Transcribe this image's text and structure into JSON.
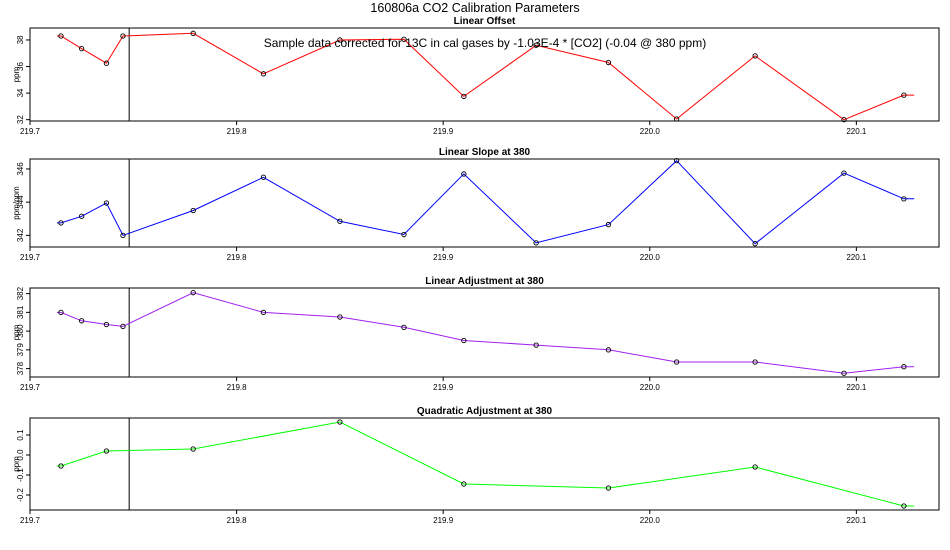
{
  "figure": {
    "title": "160806a   CO2 Calibration Parameters",
    "annotation": "Sample data corrected for 13C in cal gases by -1.03E-4 * [CO2] (-0.04 @ 380 ppm)"
  },
  "chart_data": [
    {
      "type": "line",
      "title": "Linear Offset",
      "xlabel": "",
      "ylabel": "ppm",
      "xlim": [
        219.7,
        220.14
      ],
      "ylim": [
        31.9,
        38.9
      ],
      "xticks": [
        219.7,
        219.8,
        219.9,
        220.0,
        220.1
      ],
      "xtick_labels": [
        "219.7",
        "219.8",
        "219.9",
        "220.0",
        "220.1"
      ],
      "yticks": [
        32,
        34,
        36,
        38
      ],
      "ytick_labels": [
        "32",
        "34",
        "36",
        "38"
      ],
      "vline": 219.748,
      "series": [
        {
          "color": "#ff0000",
          "line_start": 219.713,
          "line_end": 220.128,
          "x": [
            219.715,
            219.725,
            219.737,
            219.745,
            219.779,
            219.813,
            219.85,
            219.881,
            219.91,
            219.945,
            219.98,
            220.013,
            220.051,
            220.094,
            220.123
          ],
          "y": [
            38.3,
            37.35,
            36.25,
            38.3,
            38.5,
            35.45,
            38.0,
            38.05,
            33.75,
            37.6,
            36.3,
            32.05,
            36.8,
            32.0,
            33.85
          ]
        }
      ]
    },
    {
      "type": "line",
      "title": "Linear Slope at 380",
      "xlabel": "",
      "ylabel": "ppm/ppm",
      "xlim": [
        219.7,
        220.14
      ],
      "ylim": [
        341.3,
        346.6
      ],
      "xticks": [
        219.7,
        219.8,
        219.9,
        220.0,
        220.1
      ],
      "xtick_labels": [
        "219.7",
        "219.8",
        "219.9",
        "220.0",
        "220.1"
      ],
      "yticks": [
        342,
        344,
        346
      ],
      "ytick_labels": [
        "342",
        "344",
        "346"
      ],
      "vline": 219.748,
      "series": [
        {
          "color": "#0000ff",
          "line_start": 219.713,
          "line_end": 220.128,
          "x": [
            219.715,
            219.725,
            219.737,
            219.745,
            219.779,
            219.813,
            219.85,
            219.881,
            219.91,
            219.945,
            219.98,
            220.013,
            220.051,
            220.094,
            220.123
          ],
          "y": [
            342.75,
            343.15,
            343.95,
            342.0,
            343.5,
            345.5,
            342.85,
            342.05,
            345.7,
            341.55,
            342.65,
            346.5,
            341.5,
            345.75,
            344.2
          ]
        }
      ]
    },
    {
      "type": "line",
      "title": "Linear Adjustment at 380",
      "xlabel": "",
      "ylabel": "ppm",
      "xlim": [
        219.7,
        220.14
      ],
      "ylim": [
        377.55,
        382.3
      ],
      "xticks": [
        219.7,
        219.8,
        219.9,
        220.0,
        220.1
      ],
      "xtick_labels": [
        "219.7",
        "219.8",
        "219.9",
        "220.0",
        "220.1"
      ],
      "yticks": [
        378,
        379,
        380,
        381,
        382
      ],
      "ytick_labels": [
        "378",
        "379",
        "380",
        "381",
        "382"
      ],
      "vline": 219.748,
      "series": [
        {
          "color": "#a020f0",
          "line_start": 219.713,
          "line_end": 220.128,
          "x": [
            219.715,
            219.725,
            219.737,
            219.745,
            219.779,
            219.813,
            219.85,
            219.881,
            219.91,
            219.945,
            219.98,
            220.013,
            220.051,
            220.094,
            220.123
          ],
          "y": [
            381.0,
            380.55,
            380.35,
            380.25,
            382.05,
            381.0,
            380.75,
            380.2,
            379.5,
            379.25,
            379.0,
            378.35,
            378.35,
            377.75,
            378.1
          ]
        }
      ]
    },
    {
      "type": "line",
      "title": "Quadratic Adjustment at 380",
      "xlabel": "",
      "ylabel": "ppm",
      "xlim": [
        219.7,
        220.14
      ],
      "ylim": [
        -0.275,
        0.185
      ],
      "xticks": [
        219.7,
        219.8,
        219.9,
        220.0,
        220.1
      ],
      "xtick_labels": [
        "219.7",
        "219.8",
        "219.9",
        "220.0",
        "220.1"
      ],
      "yticks": [
        -0.2,
        -0.1,
        0.0,
        0.1
      ],
      "ytick_labels": [
        "-0.2",
        "-0.1",
        "0.0",
        "0.1"
      ],
      "vline": 219.748,
      "series": [
        {
          "color": "#00ff00",
          "line_start": 219.713,
          "line_end": 220.128,
          "x": [
            219.715,
            219.737,
            219.779,
            219.85,
            219.91,
            219.98,
            220.051,
            220.123
          ],
          "y": [
            -0.055,
            0.02,
            0.03,
            0.165,
            -0.145,
            -0.165,
            -0.06,
            -0.255
          ]
        }
      ]
    }
  ]
}
